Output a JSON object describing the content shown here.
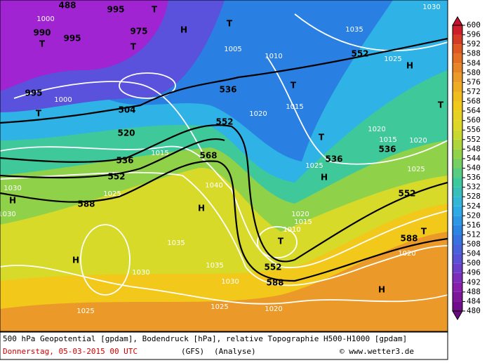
{
  "map": {
    "labels": [
      "488",
      "1000",
      "990",
      "995",
      "T",
      "995",
      "T",
      "975",
      "T",
      "H",
      "T",
      "1005",
      "1010",
      "536",
      "T",
      "1030",
      "1035",
      "552",
      "1025",
      "H",
      "T",
      "504",
      "1000",
      "995",
      "T",
      "520",
      "552",
      "1020",
      "1015",
      "T",
      "1020",
      "1020",
      "536",
      "1015",
      "536",
      "1025",
      "H",
      "1025",
      "552",
      "536",
      "1015",
      "568",
      "552",
      "1030",
      "H",
      "588",
      "1025",
      "1040",
      "H",
      "1020",
      "1015",
      "1010",
      "T",
      "552",
      "588",
      "588",
      "T",
      "1020",
      "H",
      "1035",
      "1035",
      "1030",
      "1030",
      "H",
      "1025",
      "1025",
      "1020",
      "1030"
    ]
  },
  "colorbar": {
    "ticks": [
      480,
      484,
      488,
      492,
      496,
      500,
      504,
      508,
      512,
      516,
      520,
      524,
      528,
      532,
      536,
      540,
      544,
      548,
      552,
      556,
      560,
      564,
      568,
      572,
      576,
      580,
      584,
      588,
      592,
      596,
      600
    ]
  },
  "footer": {
    "description": "500 hPa Geopotential [gpdam], Bodendruck [hPa], relative Topographie H500-H1000 [gpdam]",
    "date": "Donnerstag, 05-03-2015  00 UTC",
    "model": "(GFS)",
    "run": "(Analyse)",
    "copyright": "© www.wetter3.de"
  }
}
